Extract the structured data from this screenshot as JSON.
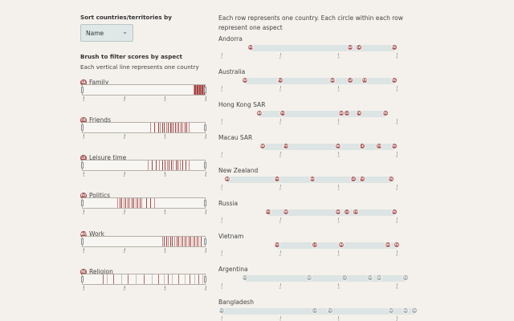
{
  "sort": {
    "label": "Sort countries/territories by",
    "selected": "Name"
  },
  "brush": {
    "label": "Brush to filter scores by aspect",
    "sub": "Each vertical line represents one country"
  },
  "axis_ticks": [
    "1",
    "2",
    "3",
    "4"
  ],
  "aspects": [
    {
      "key": "FA",
      "name": "Family",
      "lines": [
        3.72,
        3.74,
        3.76,
        3.78,
        3.8,
        3.81,
        3.82,
        3.83,
        3.84,
        3.85,
        3.86,
        3.87,
        3.88,
        3.89,
        3.9,
        3.91,
        3.92,
        3.93,
        3.94,
        3.95,
        3.96,
        3.97,
        3.98
      ]
    },
    {
      "key": "FR",
      "name": "Friends",
      "lines": [
        2.65,
        2.75,
        2.85,
        2.9,
        2.95,
        3.0,
        3.05,
        3.1,
        3.15,
        3.18,
        3.22,
        3.26,
        3.3,
        3.35,
        3.4,
        3.45,
        3.5,
        3.55,
        3.6
      ]
    },
    {
      "key": "LE",
      "name": "Leisure time",
      "lines": [
        2.6,
        2.7,
        2.8,
        2.88,
        2.95,
        3.02,
        3.08,
        3.12,
        3.18,
        3.22,
        3.28,
        3.33,
        3.38,
        3.45,
        3.52,
        3.6
      ]
    },
    {
      "key": "PO",
      "name": "Politics",
      "lines": [
        1.85,
        1.9,
        1.95,
        2.0,
        2.05,
        2.1,
        2.15,
        2.2,
        2.25,
        2.3,
        2.35,
        2.4,
        2.45,
        2.55,
        2.65,
        2.75
      ]
    },
    {
      "key": "WO",
      "name": "Work",
      "lines": [
        2.95,
        3.0,
        3.05,
        3.1,
        3.15,
        3.2,
        3.25,
        3.3,
        3.35,
        3.4,
        3.45,
        3.5,
        3.55,
        3.6,
        3.65,
        3.7,
        3.75,
        3.8,
        3.85,
        3.9
      ]
    },
    {
      "key": "RE",
      "name": "Religion",
      "lines": [
        1.5,
        1.6,
        1.75,
        1.95,
        2.1,
        2.3,
        2.5,
        2.7,
        2.85,
        3.0,
        3.1,
        3.2,
        3.35,
        3.5,
        3.62,
        3.75,
        3.85,
        3.95
      ]
    }
  ],
  "right": {
    "intro": "Each row represents one country. Each circle within each row represent one aspect",
    "countries": [
      {
        "name": "Andorra",
        "grey": false,
        "dots": [
          {
            "k": "PO",
            "v": 1.5
          },
          {
            "k": "WO",
            "v": 3.2
          },
          {
            "k": "LE",
            "v": 3.35
          },
          {
            "k": "FA",
            "v": 3.95
          }
        ]
      },
      {
        "name": "Australia",
        "grey": false,
        "dots": [
          {
            "k": "RE",
            "v": 1.4
          },
          {
            "k": "PO",
            "v": 2.0
          },
          {
            "k": "WO",
            "v": 2.9
          },
          {
            "k": "LE",
            "v": 3.2
          },
          {
            "k": "FR",
            "v": 3.45
          },
          {
            "k": "FA",
            "v": 3.95
          }
        ]
      },
      {
        "name": "Hong Kong SAR",
        "grey": false,
        "dots": [
          {
            "k": "RE",
            "v": 1.65
          },
          {
            "k": "PO",
            "v": 2.05
          },
          {
            "k": "WO",
            "v": 3.05
          },
          {
            "k": "LE",
            "v": 3.15
          },
          {
            "k": "FR",
            "v": 3.35
          },
          {
            "k": "FA",
            "v": 3.8
          }
        ]
      },
      {
        "name": "Macau SAR",
        "grey": false,
        "dots": [
          {
            "k": "RE",
            "v": 1.7
          },
          {
            "k": "PO",
            "v": 2.1
          },
          {
            "k": "WO",
            "v": 3.0
          },
          {
            "k": "LE",
            "v": 3.4
          },
          {
            "k": "FR",
            "v": 3.7
          },
          {
            "k": "FA",
            "v": 3.95
          }
        ]
      },
      {
        "name": "New Zealand",
        "grey": false,
        "dots": [
          {
            "k": "RE",
            "v": 1.1
          },
          {
            "k": "PO",
            "v": 1.95
          },
          {
            "k": "WO",
            "v": 2.55
          },
          {
            "k": "LE",
            "v": 3.25
          },
          {
            "k": "FR",
            "v": 3.4
          },
          {
            "k": "FA",
            "v": 3.9
          }
        ]
      },
      {
        "name": "Russia",
        "grey": false,
        "dots": [
          {
            "k": "PO",
            "v": 1.8
          },
          {
            "k": "RE",
            "v": 2.1
          },
          {
            "k": "WO",
            "v": 3.0
          },
          {
            "k": "LE",
            "v": 3.15
          },
          {
            "k": "FR",
            "v": 3.3
          },
          {
            "k": "FA",
            "v": 3.95
          }
        ]
      },
      {
        "name": "Vietnam",
        "grey": false,
        "dots": [
          {
            "k": "PO",
            "v": 1.95
          },
          {
            "k": "LE",
            "v": 2.6
          },
          {
            "k": "RE",
            "v": 3.05
          },
          {
            "k": "WO",
            "v": 3.85
          },
          {
            "k": "FA",
            "v": 4.0
          }
        ]
      },
      {
        "name": "Argentina",
        "grey": true,
        "dots": [
          {
            "k": "PO",
            "v": 1.4
          },
          {
            "k": "RE",
            "v": 2.5
          },
          {
            "k": "LE",
            "v": 3.1
          },
          {
            "k": "FR",
            "v": 3.55
          },
          {
            "k": "WO",
            "v": 3.7
          },
          {
            "k": "FA",
            "v": 4.15
          }
        ]
      },
      {
        "name": "Bangladesh",
        "grey": true,
        "dots": [
          {
            "k": "PO",
            "v": 1.0
          },
          {
            "k": "LE",
            "v": 2.6
          },
          {
            "k": "FR",
            "v": 2.85
          },
          {
            "k": "RE",
            "v": 3.9
          },
          {
            "k": "WO",
            "v": 4.15
          },
          {
            "k": "FA",
            "v": 4.3
          }
        ]
      }
    ]
  },
  "colors": {
    "accent": "#a14a4a",
    "bar": "#dce4e4",
    "grey": "#a3abab"
  }
}
